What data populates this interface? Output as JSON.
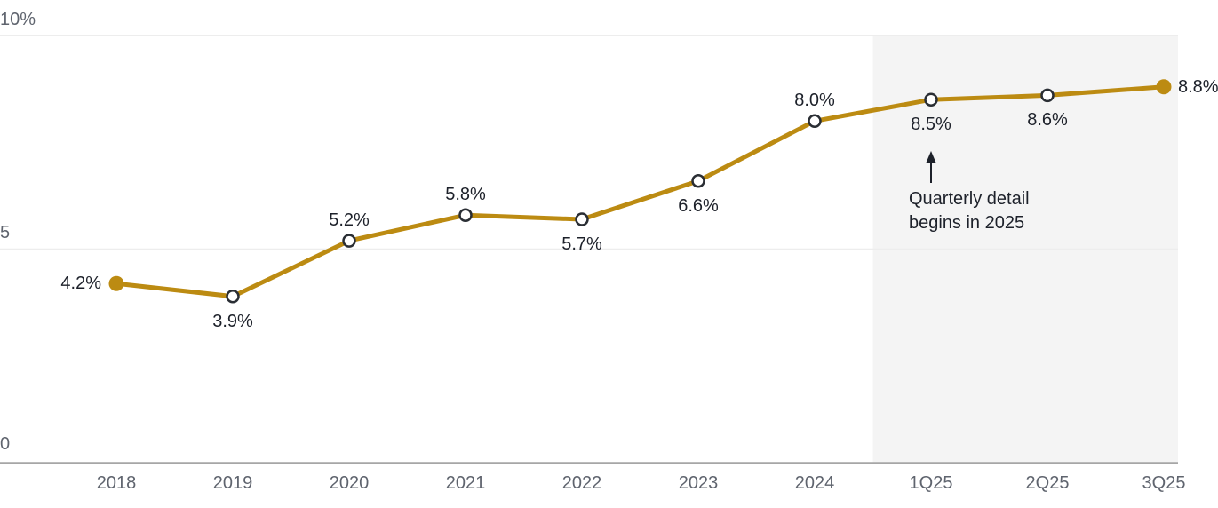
{
  "chart_data": {
    "type": "line",
    "title": "",
    "categories": [
      "2018",
      "2019",
      "2020",
      "2021",
      "2022",
      "2023",
      "2024",
      "1Q25",
      "2Q25",
      "3Q25"
    ],
    "values": [
      4.2,
      3.9,
      5.2,
      5.8,
      5.7,
      6.6,
      8.0,
      8.5,
      8.6,
      8.8
    ],
    "point_labels": [
      "4.2%",
      "3.9%",
      "5.2%",
      "5.8%",
      "5.7%",
      "6.6%",
      "8.0%",
      "8.5%",
      "8.6%",
      "8.8%"
    ],
    "point_label_positions": [
      "left",
      "below",
      "above",
      "above",
      "below",
      "below",
      "above",
      "below",
      "below",
      "right"
    ],
    "point_markers": [
      "filled",
      "open",
      "open",
      "open",
      "open",
      "open",
      "open",
      "open",
      "open",
      "filled"
    ],
    "y_axis": {
      "range": [
        0,
        10
      ],
      "ticks": [
        {
          "value": 10,
          "label": "10%"
        },
        {
          "value": 5,
          "label": "5"
        },
        {
          "value": 0,
          "label": "0"
        }
      ],
      "grid": true
    },
    "x_axis": {
      "tick_labels": [
        "2018",
        "2019",
        "2020",
        "2021",
        "2022",
        "2023",
        "2024",
        "1Q25",
        "2Q25",
        "3Q25"
      ]
    },
    "legend": "none",
    "shaded_region": {
      "starts_between": [
        "2024",
        "1Q25"
      ],
      "covers": [
        "1Q25",
        "2Q25",
        "3Q25"
      ],
      "color": "#F4F4F4"
    },
    "annotation": {
      "line1": "Quarterly detail",
      "line2": "begins in 2025",
      "arrow_direction": "up",
      "points_to": "1Q25 value 8.5%"
    },
    "colors": {
      "line": "#BC8B12",
      "filled_marker": "#BC8B12",
      "open_marker_stroke": "#2A2E34",
      "open_marker_fill": "#FFFFFF",
      "data_label": "#1D212A",
      "axis_label": "#5F646E",
      "gridline": "#EDEDED",
      "axis_line": "#A6A6A6",
      "annotation_text": "#1D212A",
      "arrow": "#1D212A"
    }
  }
}
